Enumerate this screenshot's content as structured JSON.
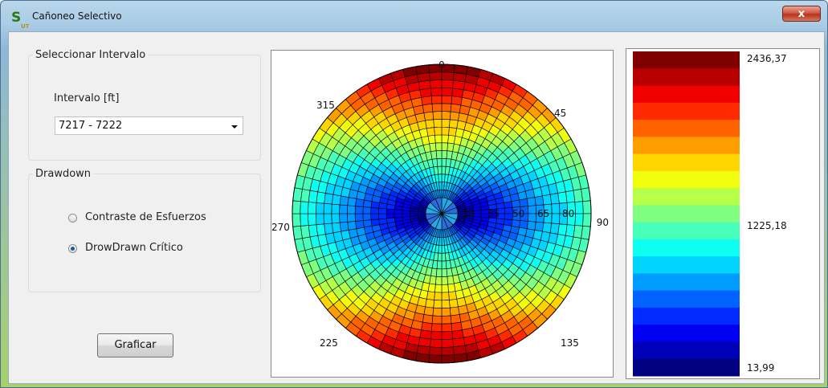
{
  "window": {
    "title": "Cañoneo Selectivo",
    "close_label": "x",
    "app_icon_main": "S",
    "app_icon_sub": "UT"
  },
  "interval_group": {
    "legend": "Seleccionar Intervalo",
    "label": "Intervalo [ft]",
    "selected": "7217 - 7222"
  },
  "drawdown_group": {
    "legend": "Drawdown",
    "options": [
      {
        "label": "Contraste de Esfuerzos",
        "checked": false
      },
      {
        "label": "DrowDrawn Crítico",
        "checked": true
      }
    ]
  },
  "buttons": {
    "plot_label": "Graficar"
  },
  "chart_data": {
    "type": "heatmap",
    "plot": "polar",
    "angle_labels": [
      "0",
      "45",
      "90",
      "135",
      "225",
      "270",
      "315"
    ],
    "radius_labels": [
      "20",
      "35",
      "50",
      "65",
      "80"
    ],
    "min": 13.99,
    "max": 2436.37,
    "colorbar_labels": [
      "2436,37",
      "1225,18",
      "13,99"
    ],
    "colorbar_steps": 19
  }
}
